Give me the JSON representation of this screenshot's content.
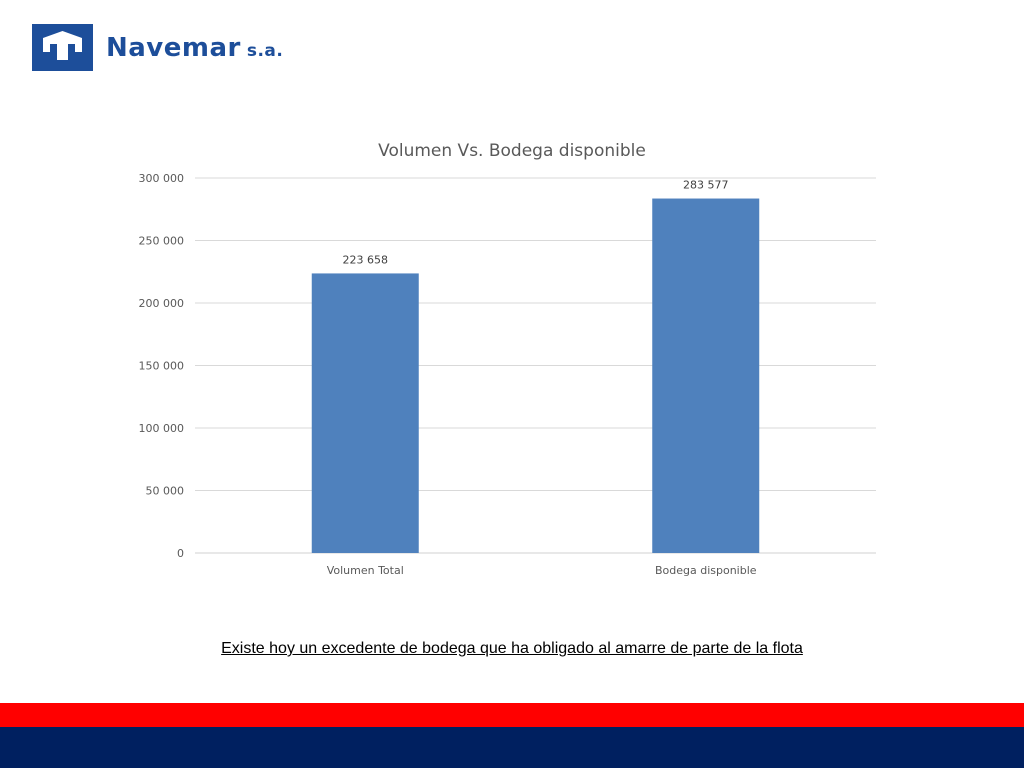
{
  "brand": {
    "name": "Navemar",
    "suffix": "s.a.",
    "color": "#1d4e9a"
  },
  "colors": {
    "bar": "#4f81bd",
    "band_red": "#ff0000",
    "band_navy": "#002060"
  },
  "chart_data": {
    "type": "bar",
    "title": "Volumen Vs. Bodega disponible",
    "categories": [
      "Volumen Total",
      "Bodega disponible"
    ],
    "values": [
      223658,
      283577
    ],
    "value_labels": [
      "223 658",
      "283 577"
    ],
    "ylim": [
      0,
      300000
    ],
    "yticks": [
      0,
      50000,
      100000,
      150000,
      200000,
      250000,
      300000
    ],
    "ytick_labels": [
      "0",
      "50 000",
      "100 000",
      "150 000",
      "200 000",
      "250 000",
      "300 000"
    ],
    "grid": true,
    "legend": "none"
  },
  "caption": "Existe hoy un excedente de bodega que ha obligado al amarre de parte de la flota"
}
